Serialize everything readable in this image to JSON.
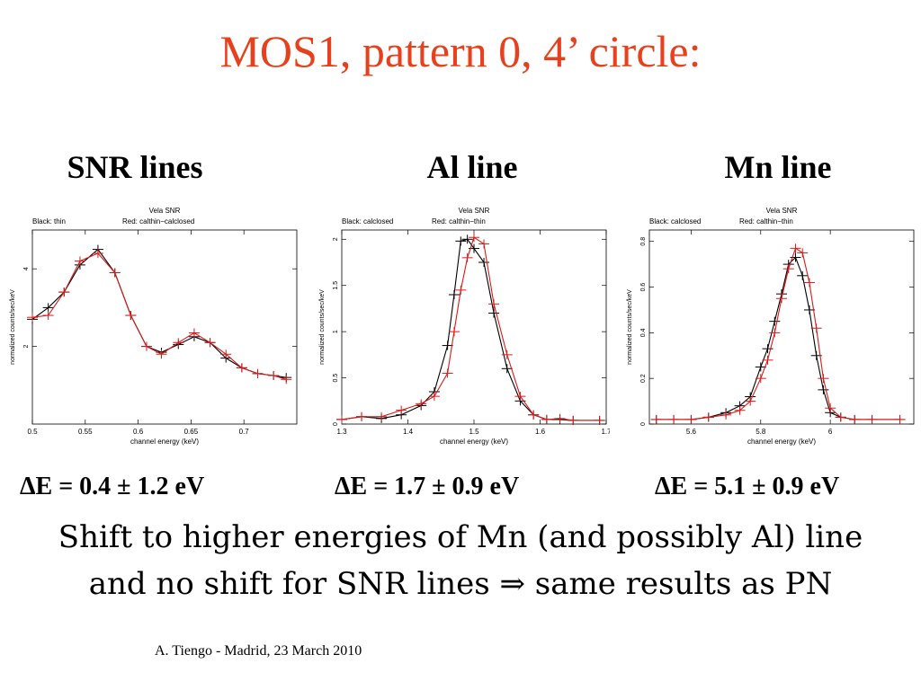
{
  "title": "MOS1, pattern 0, 4’ circle:",
  "headings": [
    "SNR lines",
    "Al line",
    "Mn line"
  ],
  "deltas": [
    "ΔE = 0.4 ± 1.2 eV",
    "ΔE = 1.7 ± 0.9 eV",
    "ΔE = 5.1 ± 0.9 eV"
  ],
  "conclusion": {
    "line1": "Shift to higher energies of Mn (and possibly Al) line",
    "line2": "and no shift for SNR lines ⇒ same results as PN"
  },
  "footer": "A. Tiengo - Madrid,  23 March 2010",
  "colors": {
    "title": "#e8401c",
    "series_black": "#000000",
    "series_red": "#d81a1a"
  },
  "chart_data": [
    {
      "type": "line",
      "title": "Vela SNR",
      "xlabel": "channel energy (keV)",
      "ylabel": "normalized counts/sec/keV",
      "xlim": [
        0.5,
        0.75
      ],
      "ylim": [
        0,
        5
      ],
      "xticks": [
        0.5,
        0.55,
        0.6,
        0.65,
        0.7
      ],
      "yticks": [
        2,
        4
      ],
      "series": [
        {
          "name": "Black: thin",
          "color": "#000000",
          "x": [
            0.5,
            0.515,
            0.53,
            0.545,
            0.562,
            0.578,
            0.593,
            0.608,
            0.622,
            0.638,
            0.653,
            0.668,
            0.683,
            0.698,
            0.713,
            0.728,
            0.74
          ],
          "values": [
            2.7,
            3.0,
            3.4,
            4.1,
            4.5,
            3.9,
            2.8,
            2.0,
            1.85,
            2.05,
            2.25,
            2.1,
            1.7,
            1.45,
            1.3,
            1.25,
            1.2
          ]
        },
        {
          "name": "Red: calthin−calclosed",
          "color": "#d81a1a",
          "x": [
            0.5,
            0.515,
            0.53,
            0.545,
            0.562,
            0.578,
            0.593,
            0.608,
            0.622,
            0.638,
            0.653,
            0.668,
            0.683,
            0.698,
            0.713,
            0.728,
            0.74
          ],
          "values": [
            2.75,
            2.8,
            3.4,
            4.2,
            4.4,
            3.9,
            2.8,
            2.0,
            1.8,
            2.1,
            2.35,
            2.1,
            1.8,
            1.45,
            1.3,
            1.25,
            1.15
          ]
        }
      ]
    },
    {
      "type": "line",
      "title": "Vela SNR",
      "xlabel": "channel energy (keV)",
      "ylabel": "normalized counts/sec/keV",
      "xlim": [
        1.3,
        1.7
      ],
      "ylim": [
        0,
        2.1
      ],
      "xticks": [
        1.3,
        1.4,
        1.5,
        1.6,
        1.7
      ],
      "yticks": [
        0,
        0.5,
        1,
        1.5,
        2
      ],
      "series": [
        {
          "name": "Black: calclosed",
          "color": "#000000",
          "x": [
            1.3,
            1.33,
            1.36,
            1.39,
            1.42,
            1.44,
            1.46,
            1.47,
            1.48,
            1.49,
            1.5,
            1.515,
            1.53,
            1.55,
            1.57,
            1.59,
            1.61,
            1.63,
            1.65,
            1.69
          ],
          "values": [
            0.05,
            0.08,
            0.06,
            0.1,
            0.2,
            0.35,
            0.85,
            1.4,
            1.98,
            2.0,
            1.9,
            1.75,
            1.2,
            0.6,
            0.25,
            0.1,
            0.05,
            0.05,
            0.04,
            0.04
          ]
        },
        {
          "name": "Red: calthin−thin",
          "color": "#d81a1a",
          "x": [
            1.3,
            1.33,
            1.36,
            1.39,
            1.42,
            1.44,
            1.46,
            1.47,
            1.48,
            1.49,
            1.5,
            1.515,
            1.53,
            1.55,
            1.57,
            1.59,
            1.61,
            1.63,
            1.65,
            1.69
          ],
          "values": [
            0.05,
            0.08,
            0.08,
            0.15,
            0.22,
            0.3,
            0.55,
            1.0,
            1.45,
            1.8,
            2.02,
            1.95,
            1.3,
            0.75,
            0.3,
            0.1,
            0.05,
            0.06,
            0.04,
            0.04
          ]
        }
      ]
    },
    {
      "type": "line",
      "title": "Vela SNR",
      "xlabel": "channel energy (keV)",
      "ylabel": "normalized counts/sec/keV",
      "xlim": [
        5.48,
        6.24
      ],
      "ylim": [
        0,
        0.85
      ],
      "xticks": [
        5.6,
        5.8,
        6
      ],
      "yticks": [
        0,
        0.2,
        0.4,
        0.6,
        0.8
      ],
      "series": [
        {
          "name": "Black: calclosed",
          "color": "#000000",
          "x": [
            5.5,
            5.55,
            5.6,
            5.65,
            5.7,
            5.74,
            5.77,
            5.8,
            5.82,
            5.84,
            5.86,
            5.88,
            5.9,
            5.92,
            5.94,
            5.96,
            5.98,
            6.0,
            6.03,
            6.07,
            6.12,
            6.2
          ],
          "values": [
            0.02,
            0.02,
            0.02,
            0.03,
            0.05,
            0.08,
            0.12,
            0.25,
            0.33,
            0.45,
            0.57,
            0.7,
            0.73,
            0.65,
            0.5,
            0.3,
            0.15,
            0.05,
            0.03,
            0.02,
            0.02,
            0.02
          ]
        },
        {
          "name": "Red: calthin−thin",
          "color": "#d81a1a",
          "x": [
            5.5,
            5.55,
            5.6,
            5.65,
            5.7,
            5.74,
            5.77,
            5.8,
            5.82,
            5.84,
            5.86,
            5.88,
            5.9,
            5.92,
            5.94,
            5.96,
            5.98,
            6.0,
            6.03,
            6.07,
            6.12,
            6.2
          ],
          "values": [
            0.02,
            0.02,
            0.02,
            0.03,
            0.04,
            0.06,
            0.1,
            0.2,
            0.28,
            0.4,
            0.55,
            0.68,
            0.77,
            0.75,
            0.62,
            0.42,
            0.2,
            0.07,
            0.03,
            0.02,
            0.02,
            0.02
          ]
        }
      ]
    }
  ]
}
